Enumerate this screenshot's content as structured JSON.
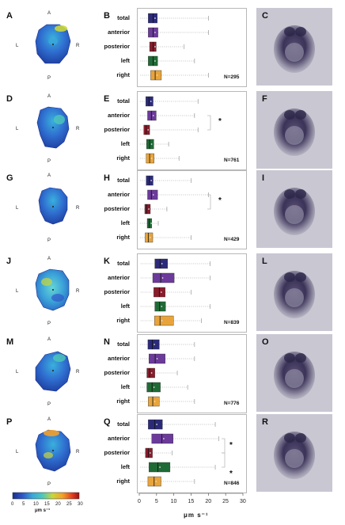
{
  "orientation": {
    "a": "A",
    "p": "P",
    "l": "L",
    "r": "R"
  },
  "categories": [
    "total",
    "anterior",
    "posterior",
    "left",
    "right"
  ],
  "colors": {
    "total": "#2b2a7a",
    "anterior": "#6b3a9a",
    "posterior": "#8a1c2b",
    "left": "#1f6b35",
    "right": "#e8a43b"
  },
  "rows": [
    {
      "map_letter": "A",
      "chart_letter": "B",
      "photo_letter": "C",
      "n_label": "N=295",
      "significance": []
    },
    {
      "map_letter": "D",
      "chart_letter": "E",
      "photo_letter": "F",
      "n_label": "N=761",
      "significance": [
        "*"
      ]
    },
    {
      "map_letter": "G",
      "chart_letter": "H",
      "photo_letter": "I",
      "n_label": "N=429",
      "significance": [
        "*"
      ]
    },
    {
      "map_letter": "J",
      "chart_letter": "K",
      "photo_letter": "L",
      "n_label": "N=839",
      "significance": []
    },
    {
      "map_letter": "M",
      "chart_letter": "N",
      "photo_letter": "O",
      "n_label": "N=776",
      "significance": []
    },
    {
      "map_letter": "P",
      "chart_letter": "Q",
      "photo_letter": "R",
      "n_label": "N=846",
      "significance": [
        "*",
        "*"
      ]
    }
  ],
  "axis": {
    "ticks": [
      "0",
      "5",
      "10",
      "15",
      "20",
      "25",
      "30"
    ],
    "title": "μm s⁻¹"
  },
  "colorbar": {
    "ticks": [
      "0",
      "5",
      "10",
      "15",
      "20",
      "25",
      "30"
    ],
    "unit": "μm s⁻¹"
  },
  "chart_data": [
    {
      "type": "box",
      "panel": "B",
      "xlim": [
        0,
        30
      ],
      "categories": [
        "total",
        "anterior",
        "posterior",
        "left",
        "right"
      ],
      "boxes": [
        {
          "q1": 2.6,
          "median": 4.0,
          "q3": 5.2,
          "wmin": 0.3,
          "wmax": 20.0
        },
        {
          "q1": 2.6,
          "median": 4.0,
          "q3": 5.4,
          "wmin": 0.3,
          "wmax": 20.0
        },
        {
          "q1": 3.0,
          "median": 4.0,
          "q3": 4.9,
          "wmin": 0.4,
          "wmax": 13.0
        },
        {
          "q1": 2.6,
          "median": 4.0,
          "q3": 5.3,
          "wmin": 0.3,
          "wmax": 16.0
        },
        {
          "q1": 3.3,
          "median": 4.6,
          "q3": 6.4,
          "wmin": 0.3,
          "wmax": 20.0
        }
      ]
    },
    {
      "type": "box",
      "panel": "E",
      "xlim": [
        0,
        30
      ],
      "categories": [
        "total",
        "anterior",
        "posterior",
        "left",
        "right"
      ],
      "boxes": [
        {
          "q1": 1.9,
          "median": 2.8,
          "q3": 4.0,
          "wmin": 0.2,
          "wmax": 17.0
        },
        {
          "q1": 2.4,
          "median": 3.5,
          "q3": 4.9,
          "wmin": 0.2,
          "wmax": 16.0
        },
        {
          "q1": 1.3,
          "median": 2.0,
          "q3": 3.0,
          "wmin": 0.2,
          "wmax": 17.0
        },
        {
          "q1": 2.1,
          "median": 3.0,
          "q3": 4.2,
          "wmin": 0.2,
          "wmax": 8.5
        },
        {
          "q1": 2.0,
          "median": 3.0,
          "q3": 4.3,
          "wmin": 0.2,
          "wmax": 11.5
        }
      ]
    },
    {
      "type": "box",
      "panel": "H",
      "xlim": [
        0,
        30
      ],
      "categories": [
        "total",
        "anterior",
        "posterior",
        "left",
        "right"
      ],
      "boxes": [
        {
          "q1": 2.0,
          "median": 2.9,
          "q3": 4.0,
          "wmin": 0.2,
          "wmax": 15.0
        },
        {
          "q1": 2.4,
          "median": 3.5,
          "q3": 5.3,
          "wmin": 0.2,
          "wmax": 20.0
        },
        {
          "q1": 1.6,
          "median": 2.2,
          "q3": 3.2,
          "wmin": 0.2,
          "wmax": 8.0
        },
        {
          "q1": 2.3,
          "median": 2.9,
          "q3": 3.6,
          "wmin": 0.2,
          "wmax": 5.5
        },
        {
          "q1": 1.7,
          "median": 2.6,
          "q3": 3.9,
          "wmin": 0.2,
          "wmax": 15.0
        }
      ]
    },
    {
      "type": "box",
      "panel": "K",
      "xlim": [
        0,
        30
      ],
      "categories": [
        "total",
        "anterior",
        "posterior",
        "left",
        "right"
      ],
      "boxes": [
        {
          "q1": 4.5,
          "median": 6.0,
          "q3": 8.2,
          "wmin": 0.4,
          "wmax": 20.5
        },
        {
          "q1": 3.9,
          "median": 6.2,
          "q3": 10.1,
          "wmin": 0.4,
          "wmax": 20.5
        },
        {
          "q1": 4.2,
          "median": 5.8,
          "q3": 7.5,
          "wmin": 0.4,
          "wmax": 15.0
        },
        {
          "q1": 4.5,
          "median": 5.9,
          "q3": 7.6,
          "wmin": 0.4,
          "wmax": 20.5
        },
        {
          "q1": 4.4,
          "median": 6.0,
          "q3": 9.9,
          "wmin": 0.4,
          "wmax": 18.0
        }
      ]
    },
    {
      "type": "box",
      "panel": "N",
      "xlim": [
        0,
        30
      ],
      "categories": [
        "total",
        "anterior",
        "posterior",
        "left",
        "right"
      ],
      "boxes": [
        {
          "q1": 2.5,
          "median": 3.8,
          "q3": 5.8,
          "wmin": 0.3,
          "wmax": 16.0
        },
        {
          "q1": 2.8,
          "median": 4.6,
          "q3": 7.5,
          "wmin": 0.3,
          "wmax": 16.0
        },
        {
          "q1": 2.2,
          "median": 3.0,
          "q3": 4.5,
          "wmin": 0.3,
          "wmax": 11.0
        },
        {
          "q1": 2.2,
          "median": 3.7,
          "q3": 6.1,
          "wmin": 0.3,
          "wmax": 14.0
        },
        {
          "q1": 2.6,
          "median": 3.9,
          "q3": 5.8,
          "wmin": 0.3,
          "wmax": 16.0
        }
      ]
    },
    {
      "type": "box",
      "panel": "Q",
      "xlim": [
        0,
        30
      ],
      "categories": [
        "total",
        "anterior",
        "posterior",
        "left",
        "right"
      ],
      "boxes": [
        {
          "q1": 2.6,
          "median": 4.5,
          "q3": 6.7,
          "wmin": 0.3,
          "wmax": 22.0
        },
        {
          "q1": 3.6,
          "median": 6.5,
          "q3": 9.8,
          "wmin": 0.3,
          "wmax": 23.0
        },
        {
          "q1": 1.8,
          "median": 2.6,
          "q3": 3.8,
          "wmin": 0.3,
          "wmax": 9.5
        },
        {
          "q1": 2.8,
          "median": 5.4,
          "q3": 8.9,
          "wmin": 0.3,
          "wmax": 22.0
        },
        {
          "q1": 2.5,
          "median": 4.3,
          "q3": 6.3,
          "wmin": 0.3,
          "wmax": 16.0
        }
      ]
    }
  ]
}
